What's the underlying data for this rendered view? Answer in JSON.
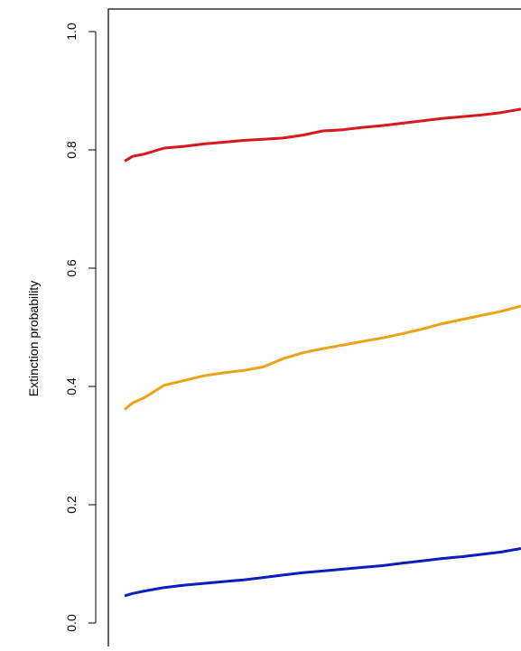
{
  "chart_data": {
    "type": "line",
    "ylabel": "Extinction probability",
    "ylim": [
      0.0,
      1.0
    ],
    "y_ticks": [
      "0.0",
      "0.2",
      "0.4",
      "0.6",
      "0.8",
      "1.0"
    ],
    "grid": false,
    "legend": "none",
    "series": [
      {
        "color": "#d7191c",
        "x": [
          0,
          0.02,
          0.05,
          0.1,
          0.15,
          0.2,
          0.25,
          0.3,
          0.35,
          0.4,
          0.45,
          0.5,
          0.55,
          0.6,
          0.65,
          0.7,
          0.75,
          0.8,
          0.85,
          0.9,
          0.95,
          1.0
        ],
        "values": [
          0.781,
          0.789,
          0.793,
          0.803,
          0.806,
          0.81,
          0.813,
          0.816,
          0.818,
          0.82,
          0.825,
          0.832,
          0.834,
          0.838,
          0.841,
          0.845,
          0.849,
          0.853,
          0.856,
          0.859,
          0.863,
          0.869
        ]
      },
      {
        "color": "#e8a317",
        "x": [
          0,
          0.02,
          0.05,
          0.1,
          0.15,
          0.2,
          0.25,
          0.3,
          0.35,
          0.4,
          0.45,
          0.5,
          0.55,
          0.6,
          0.65,
          0.7,
          0.75,
          0.8,
          0.85,
          0.9,
          0.95,
          1.0
        ],
        "values": [
          0.361,
          0.372,
          0.381,
          0.402,
          0.41,
          0.418,
          0.423,
          0.427,
          0.433,
          0.447,
          0.457,
          0.464,
          0.47,
          0.476,
          0.482,
          0.489,
          0.497,
          0.506,
          0.513,
          0.52,
          0.527,
          0.536
        ]
      },
      {
        "color": "#0b1fbf",
        "x": [
          0,
          0.02,
          0.05,
          0.1,
          0.15,
          0.2,
          0.25,
          0.3,
          0.35,
          0.4,
          0.45,
          0.5,
          0.55,
          0.6,
          0.65,
          0.7,
          0.75,
          0.8,
          0.85,
          0.9,
          0.95,
          1.0
        ],
        "values": [
          0.046,
          0.05,
          0.054,
          0.06,
          0.064,
          0.067,
          0.07,
          0.073,
          0.077,
          0.081,
          0.085,
          0.088,
          0.091,
          0.094,
          0.097,
          0.101,
          0.105,
          0.109,
          0.112,
          0.116,
          0.12,
          0.126
        ]
      }
    ]
  }
}
